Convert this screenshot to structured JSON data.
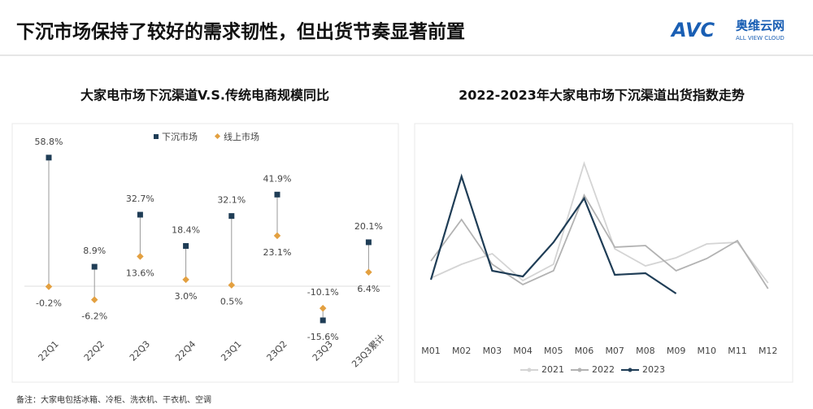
{
  "header": {
    "title": "下沉市场保持了较好的需求韧性，但出货节奏显著前置",
    "logo": {
      "mark": "AVC",
      "name": "奥维云网",
      "tagline": "ALL VIEW CLOUD"
    }
  },
  "chart_data": [
    {
      "type": "dot",
      "title": "大家电市场下沉渠道V.S.传统电商规模同比",
      "categories": [
        "22Q1",
        "22Q2",
        "22Q3",
        "22Q4",
        "23Q1",
        "23Q2",
        "23Q3",
        "23Q3累计"
      ],
      "series": [
        {
          "name": "下沉市场",
          "color": "#1f3d56",
          "values": [
            58.8,
            8.9,
            32.7,
            18.4,
            32.1,
            41.9,
            -15.6,
            20.1
          ],
          "value_labels": [
            "58.8%",
            "8.9%",
            "32.7%",
            "18.4%",
            "32.1%",
            "41.9%",
            "-15.6%",
            "20.1%"
          ]
        },
        {
          "name": "线上市场",
          "color": "#e3a040",
          "values": [
            -0.2,
            -6.2,
            13.6,
            3.0,
            0.5,
            23.1,
            -10.1,
            6.4
          ],
          "value_labels": [
            "-0.2%",
            "-6.2%",
            "13.6%",
            "3.0%",
            "0.5%",
            "23.1%",
            "-10.1%",
            "6.4%"
          ]
        }
      ]
    },
    {
      "type": "line",
      "title": "2022-2023年大家电市场下沉渠道出货指数走势",
      "categories": [
        "M01",
        "M02",
        "M03",
        "M04",
        "M05",
        "M06",
        "M07",
        "M08",
        "M09",
        "M10",
        "M11",
        "M12"
      ],
      "series": [
        {
          "name": "2021",
          "color": "#d4d4d4",
          "values": [
            78,
            95,
            108,
            75,
            95,
            219,
            114,
            93,
            103,
            120,
            122,
            72
          ]
        },
        {
          "name": "2022",
          "color": "#b2b2b2",
          "values": [
            99,
            150,
            95,
            70,
            87,
            180,
            116,
            118,
            87,
            102,
            124,
            65
          ]
        },
        {
          "name": "2023",
          "color": "#1f3d56",
          "values": [
            76,
            203,
            87,
            80,
            122,
            176,
            82,
            84,
            59,
            null,
            null,
            null
          ]
        }
      ]
    }
  ],
  "footnote": "备注：大家电包括冰箱、冷柜、洗衣机、干衣机、空调"
}
